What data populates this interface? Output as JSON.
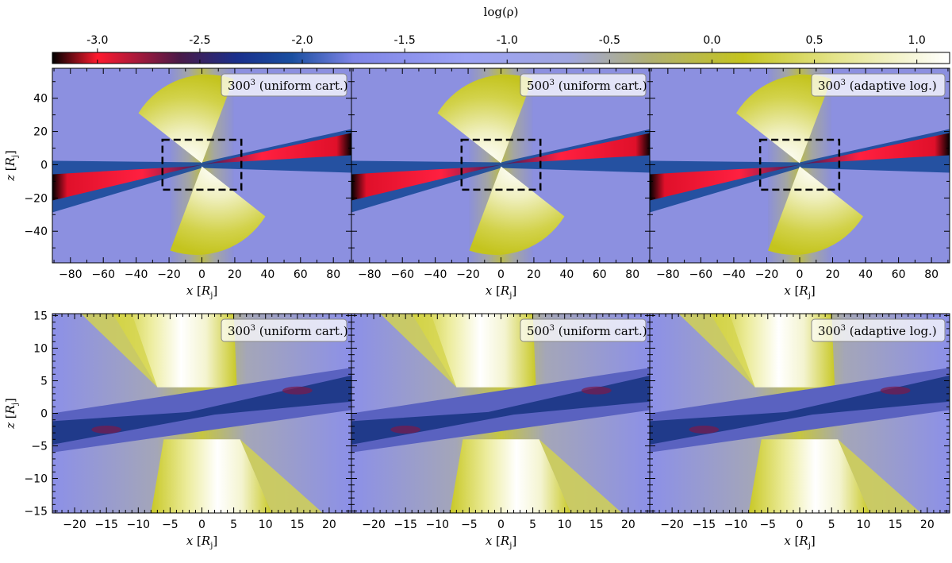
{
  "chart_data": {
    "type": "heatmap",
    "colorbar": {
      "label": "log(ρ)",
      "range": [
        -3.22,
        1.16
      ],
      "ticks": [
        -3.0,
        -2.5,
        -2.0,
        -1.5,
        -1.0,
        -0.5,
        0.0,
        0.5,
        1.0
      ],
      "tick_labels": [
        "-3.0",
        "-2.5",
        "-2.0",
        "-1.5",
        "-1.0",
        "-0.5",
        "0.0",
        "0.5",
        "1.0"
      ],
      "colormap": [
        {
          "value": -3.22,
          "color": "#000000"
        },
        {
          "value": -3.0,
          "color": "#ff1a2e"
        },
        {
          "value": -2.6,
          "color": "#4a1a48"
        },
        {
          "value": -2.32,
          "color": "#1a2f8c"
        },
        {
          "value": -2.05,
          "color": "#1a4fa0"
        },
        {
          "value": -1.75,
          "color": "#7e84e6"
        },
        {
          "value": -1.2,
          "color": "#9ca2f4"
        },
        {
          "value": -0.7,
          "color": "#a0a6e0"
        },
        {
          "value": -0.3,
          "color": "#b0b070"
        },
        {
          "value": 0.15,
          "color": "#c4c41e"
        },
        {
          "value": 0.6,
          "color": "#e4e48a"
        },
        {
          "value": 1.16,
          "color": "#ffffff"
        }
      ]
    },
    "rows": [
      {
        "row": "full",
        "xlim": [
          -91,
          91
        ],
        "ylim": [
          -59,
          58
        ],
        "xticks": [
          -80,
          -60,
          -40,
          -20,
          0,
          20,
          40,
          60,
          80
        ],
        "yticks": [
          -40,
          -20,
          0,
          20,
          40
        ],
        "xlabel": "x [R_j]",
        "ylabel": "z [R_j]",
        "zoom_box": {
          "x": [
            -24,
            24
          ],
          "y": [
            -15,
            15
          ]
        }
      },
      {
        "row": "zoom",
        "xlim": [
          -23.5,
          23.5
        ],
        "ylim": [
          -15.3,
          15.3
        ],
        "xticks": [
          -20,
          -15,
          -10,
          -5,
          0,
          5,
          10,
          15,
          20
        ],
        "yticks": [
          -15,
          -10,
          -5,
          0,
          5,
          10,
          15
        ],
        "xlabel": "x [R_j]",
        "ylabel": "z [R_j]"
      }
    ],
    "panels": [
      {
        "resolution": "300",
        "grid": "(uniform cart.)"
      },
      {
        "resolution": "500",
        "grid": "(uniform cart.)"
      },
      {
        "resolution": "300",
        "grid": "(adaptive log.)"
      }
    ]
  }
}
